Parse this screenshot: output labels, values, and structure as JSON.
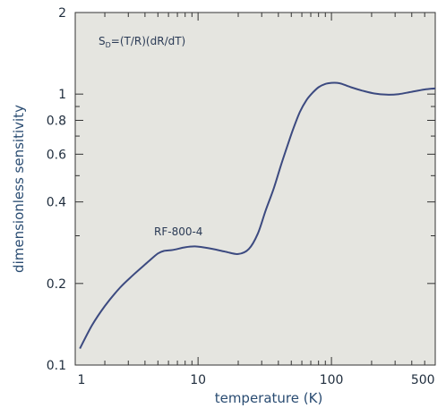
{
  "chart_data": {
    "type": "line",
    "title": "",
    "xlabel": "temperature (K)",
    "ylabel": "dimensionless sensitivity",
    "xscale": "log",
    "yscale": "log",
    "xlim": [
      1.2,
      600
    ],
    "ylim": [
      0.1,
      2
    ],
    "grid": false,
    "colors": {
      "plot_bg": "#e5e5e0",
      "line": "#3c4a80",
      "axis": "#333333"
    },
    "x_tick_labels": [
      {
        "value": 1,
        "label": "1"
      },
      {
        "value": 10,
        "label": "10"
      },
      {
        "value": 100,
        "label": "100"
      },
      {
        "value": 500,
        "label": "500"
      }
    ],
    "y_tick_labels": [
      {
        "value": 0.1,
        "label": "0.1"
      },
      {
        "value": 0.2,
        "label": "0.2"
      },
      {
        "value": 0.4,
        "label": "0.4"
      },
      {
        "value": 0.6,
        "label": "0.6"
      },
      {
        "value": 0.8,
        "label": "0.8"
      },
      {
        "value": 1,
        "label": "1"
      },
      {
        "value": 2,
        "label": "2"
      }
    ],
    "annotations": [
      {
        "text": "S_D=(T/R)(dR/dT)",
        "main": "S",
        "sub": "D",
        "rest": "=(T/R)(dR/dT)"
      },
      {
        "text": "RF-800-4",
        "x": 5.6,
        "y": 0.29
      }
    ],
    "series": [
      {
        "x": [
          1.3,
          1.6,
          2.0,
          2.6,
          3.3,
          4.2,
          5.0,
          5.6,
          6.5,
          8.0,
          9.5,
          12,
          16,
          20,
          24,
          28,
          32,
          37,
          42,
          47,
          52,
          58,
          65,
          72,
          80,
          90,
          100,
          110,
          120,
          140,
          170,
          210,
          260,
          320,
          400,
          500,
          600
        ],
        "y": [
          0.115,
          0.14,
          0.165,
          0.193,
          0.216,
          0.24,
          0.258,
          0.264,
          0.266,
          0.272,
          0.274,
          0.27,
          0.262,
          0.257,
          0.268,
          0.305,
          0.37,
          0.45,
          0.55,
          0.65,
          0.75,
          0.86,
          0.95,
          1.01,
          1.06,
          1.09,
          1.1,
          1.1,
          1.09,
          1.06,
          1.03,
          1.005,
          0.995,
          1.0,
          1.02,
          1.04,
          1.05
        ]
      }
    ]
  }
}
